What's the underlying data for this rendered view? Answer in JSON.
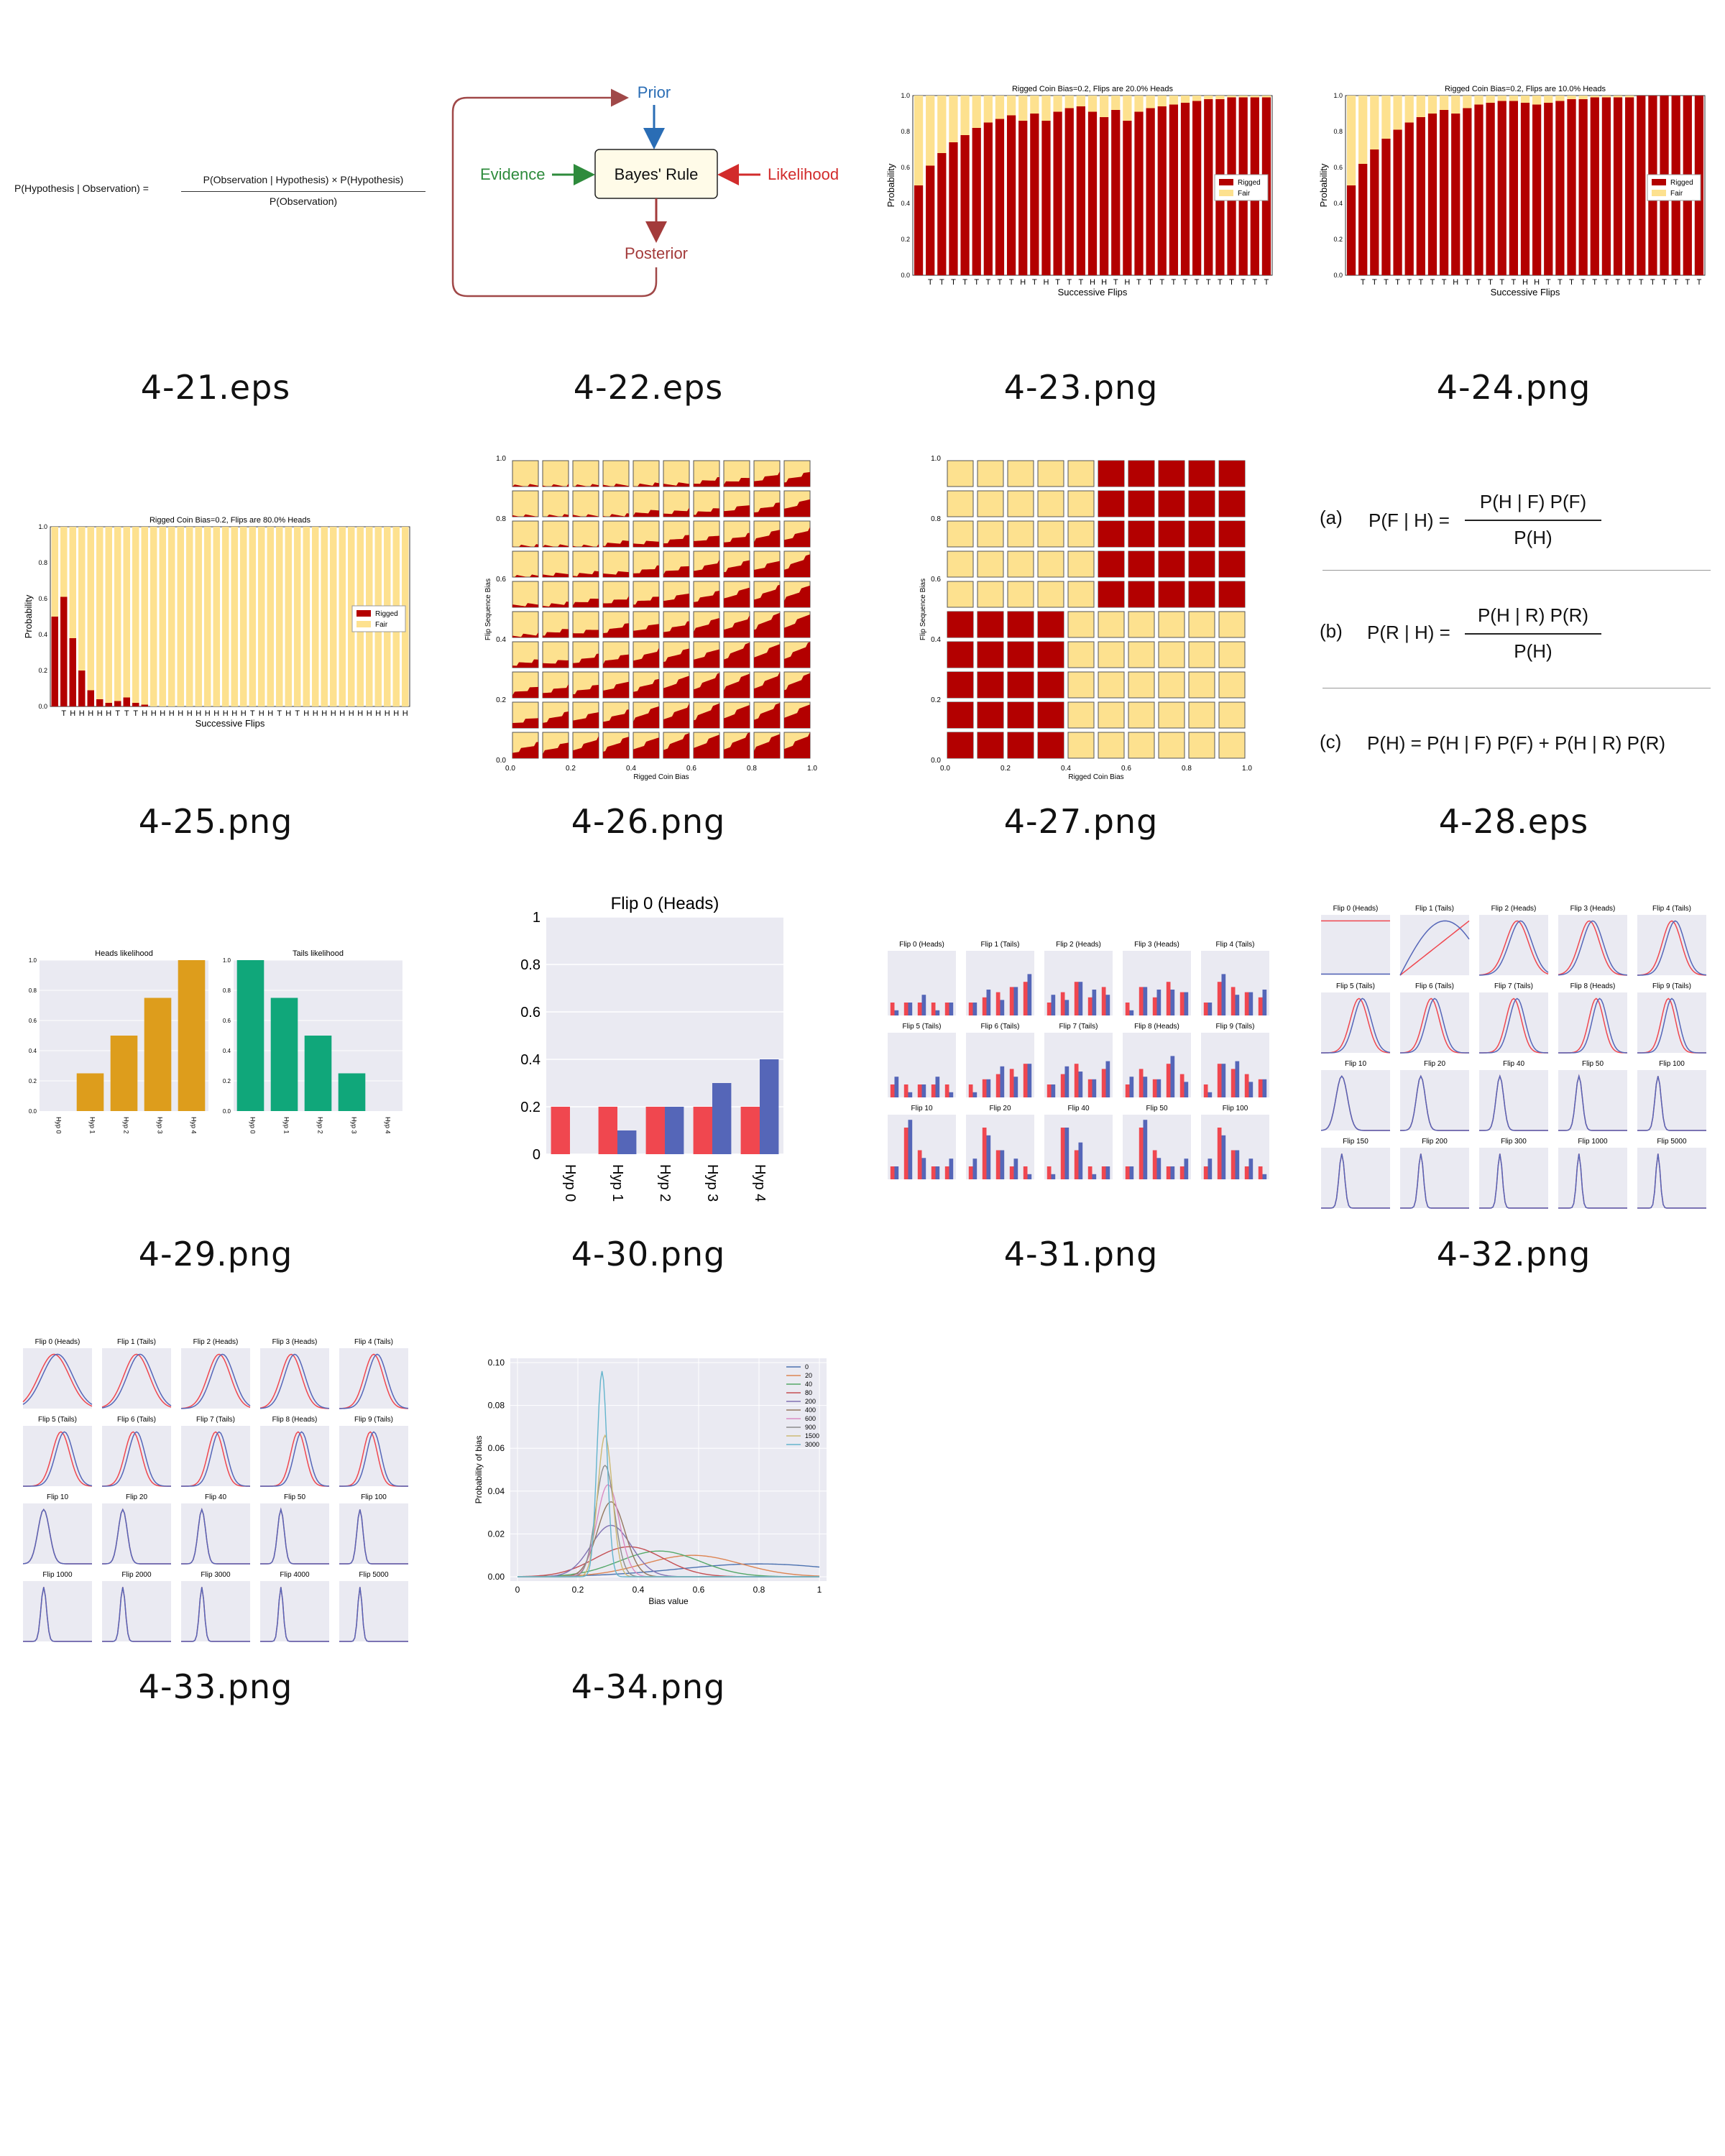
{
  "captions": [
    "4-21.eps",
    "4-22.eps",
    "4-23.png",
    "4-24.png",
    "4-25.png",
    "4-26.png",
    "4-27.png",
    "4-28.eps",
    "4-29.png",
    "4-30.png",
    "4-31.png",
    "4-32.png",
    "4-33.png",
    "4-34.png"
  ],
  "fig21": {
    "lhs": "P(Hypothesis | Observation) =",
    "numerator": "P(Observation | Hypothesis) × P(Hypothesis)",
    "denominator": "P(Observation)"
  },
  "fig22": {
    "prior": "Prior",
    "evidence": "Evidence",
    "center": "Bayes' Rule",
    "likelihood": "Likelihood",
    "posterior": "Posterior",
    "colors": {
      "prior": "#2a6db5",
      "evidence": "#2e8b3c",
      "likelihood": "#d22b2b",
      "posterior": "#a33b3b",
      "loop": "#a04848"
    }
  },
  "fig23": {
    "chart_data": {
      "type": "bar",
      "title": "Rigged Coin Bias=0.2, Flips are 20.0% Heads",
      "xlabel": "Successive Flips",
      "ylabel": "Probability",
      "ylim": [
        0,
        1.0
      ],
      "yticks": [
        "0.0",
        "0.2",
        "0.4",
        "0.6",
        "0.8",
        "1.0"
      ],
      "categories": [
        "",
        "T",
        "T",
        "T",
        "T",
        "T",
        "T",
        "T",
        "T",
        "H",
        "T",
        "H",
        "T",
        "T",
        "T",
        "H",
        "H",
        "T",
        "H",
        "T",
        "T",
        "T",
        "T",
        "T",
        "T",
        "T",
        "T",
        "T",
        "T",
        "T",
        "T"
      ],
      "series": [
        {
          "name": "Rigged",
          "values": [
            0.5,
            0.61,
            0.68,
            0.74,
            0.78,
            0.82,
            0.85,
            0.87,
            0.89,
            0.86,
            0.9,
            0.86,
            0.91,
            0.93,
            0.94,
            0.91,
            0.88,
            0.92,
            0.86,
            0.91,
            0.93,
            0.94,
            0.95,
            0.96,
            0.97,
            0.98,
            0.98,
            0.99,
            0.99,
            0.99,
            0.99
          ]
        },
        {
          "name": "Fair",
          "values": [
            0.5,
            0.39,
            0.32,
            0.26,
            0.22,
            0.18,
            0.15,
            0.13,
            0.11,
            0.14,
            0.1,
            0.14,
            0.09,
            0.07,
            0.06,
            0.09,
            0.12,
            0.08,
            0.14,
            0.09,
            0.07,
            0.06,
            0.05,
            0.04,
            0.03,
            0.02,
            0.02,
            0.01,
            0.01,
            0.01,
            0.01
          ]
        }
      ],
      "legend": "right"
    }
  },
  "fig24": {
    "chart_data": {
      "type": "bar",
      "title": "Rigged Coin Bias=0.2, Flips are 10.0% Heads",
      "xlabel": "Successive Flips",
      "ylabel": "Probability",
      "ylim": [
        0,
        1.0
      ],
      "yticks": [
        "0.0",
        "0.2",
        "0.4",
        "0.6",
        "0.8",
        "1.0"
      ],
      "categories": [
        "",
        "T",
        "T",
        "T",
        "T",
        "T",
        "T",
        "T",
        "T",
        "H",
        "T",
        "T",
        "T",
        "T",
        "T",
        "H",
        "H",
        "T",
        "T",
        "T",
        "T",
        "T",
        "T",
        "T",
        "T",
        "T",
        "T",
        "T",
        "T",
        "T",
        "T"
      ],
      "series": [
        {
          "name": "Rigged",
          "values": [
            0.5,
            0.62,
            0.7,
            0.76,
            0.81,
            0.85,
            0.88,
            0.9,
            0.92,
            0.9,
            0.93,
            0.95,
            0.96,
            0.97,
            0.97,
            0.96,
            0.95,
            0.96,
            0.97,
            0.98,
            0.98,
            0.99,
            0.99,
            0.99,
            0.99,
            1.0,
            1.0,
            1.0,
            1.0,
            1.0,
            1.0
          ]
        },
        {
          "name": "Fair",
          "values": [
            0.5,
            0.38,
            0.3,
            0.24,
            0.19,
            0.15,
            0.12,
            0.1,
            0.08,
            0.1,
            0.07,
            0.05,
            0.04,
            0.03,
            0.03,
            0.04,
            0.05,
            0.04,
            0.03,
            0.02,
            0.02,
            0.01,
            0.01,
            0.01,
            0.01,
            0.0,
            0.0,
            0.0,
            0.0,
            0.0,
            0.0
          ]
        }
      ],
      "legend": "right"
    }
  },
  "fig25": {
    "chart_data": {
      "type": "bar",
      "title": "Rigged Coin Bias=0.2, Flips are 80.0% Heads",
      "xlabel": "Successive Flips",
      "ylabel": "Probability",
      "ylim": [
        0,
        1.0
      ],
      "yticks": [
        "0.0",
        "0.2",
        "0.4",
        "0.6",
        "0.8",
        "1.0"
      ],
      "categories": [
        "",
        "T",
        "H",
        "H",
        "H",
        "H",
        "H",
        "T",
        "T",
        "T",
        "H",
        "H",
        "H",
        "H",
        "H",
        "H",
        "H",
        "H",
        "H",
        "H",
        "H",
        "H",
        "T",
        "H",
        "H",
        "T",
        "H",
        "T",
        "H",
        "H",
        "H",
        "H",
        "H",
        "H",
        "H",
        "H",
        "H",
        "H",
        "H",
        "H"
      ],
      "series": [
        {
          "name": "Rigged",
          "values": [
            0.5,
            0.61,
            0.38,
            0.2,
            0.09,
            0.04,
            0.02,
            0.03,
            0.05,
            0.02,
            0.01,
            0,
            0,
            0,
            0,
            0,
            0,
            0,
            0,
            0,
            0,
            0,
            0,
            0,
            0,
            0,
            0,
            0,
            0,
            0,
            0,
            0,
            0,
            0,
            0,
            0,
            0,
            0,
            0,
            0
          ]
        },
        {
          "name": "Fair",
          "values": [
            0.5,
            0.39,
            0.62,
            0.8,
            0.91,
            0.96,
            0.98,
            0.97,
            0.95,
            0.98,
            0.99,
            1,
            1,
            1,
            1,
            1,
            1,
            1,
            1,
            1,
            1,
            1,
            1,
            1,
            1,
            1,
            1,
            1,
            1,
            1,
            1,
            1,
            1,
            1,
            1,
            1,
            1,
            1,
            1,
            1
          ]
        }
      ],
      "legend": "right"
    }
  },
  "fig26": {
    "chart_data": {
      "type": "heatmap",
      "xlabel": "Rigged Coin Bias",
      "ylabel": "Flip Sequence Bias",
      "xticks": [
        "0.0",
        "0.2",
        "0.4",
        "0.6",
        "0.8",
        "1.0"
      ],
      "yticks": [
        "0.0",
        "0.2",
        "0.4",
        "0.6",
        "0.8",
        "1.0"
      ],
      "grid": [
        10,
        10
      ]
    }
  },
  "fig27": {
    "chart_data": {
      "type": "heatmap",
      "xlabel": "Rigged Coin Bias",
      "ylabel": "Flip Sequence Bias",
      "xticks": [
        "0.0",
        "0.2",
        "0.4",
        "0.6",
        "0.8",
        "1.0"
      ],
      "yticks": [
        "0.0",
        "0.2",
        "0.4",
        "0.6",
        "0.8",
        "1.0"
      ],
      "grid": [
        10,
        10
      ]
    }
  },
  "fig28": {
    "a_label": "(a)",
    "a_lhs": "P(F | H) =",
    "a_num": "P(H | F)  P(F)",
    "a_den": "P(H)",
    "b_label": "(b)",
    "b_lhs": "P(R | H) =",
    "b_num": "P(H | R)  P(R)",
    "b_den": "P(H)",
    "c_label": "(c)",
    "c_eq": "P(H) = P(H | F)  P(F) + P(H | R)  P(R)"
  },
  "fig29": {
    "chart_data": [
      {
        "type": "bar",
        "title": "Heads likelihood",
        "categories": [
          "Hyp 0",
          "Hyp 1",
          "Hyp 2",
          "Hyp 3",
          "Hyp 4"
        ],
        "values": [
          0,
          0.25,
          0.5,
          0.75,
          1.0
        ],
        "ylim": [
          0,
          1.0
        ],
        "color": "#dd9d1c"
      },
      {
        "type": "bar",
        "title": "Tails likelihood",
        "categories": [
          "Hyp 0",
          "Hyp 1",
          "Hyp 2",
          "Hyp 3",
          "Hyp 4"
        ],
        "values": [
          1.0,
          0.75,
          0.5,
          0.25,
          0
        ],
        "ylim": [
          0,
          1.0
        ],
        "color": "#10a77a"
      }
    ],
    "yticks": [
      "0.0",
      "0.2",
      "0.4",
      "0.6",
      "0.8",
      "1.0"
    ]
  },
  "fig30": {
    "chart_data": {
      "type": "bar",
      "title": "Flip 0 (Heads)",
      "categories": [
        "Hyp 0",
        "Hyp 1",
        "Hyp 2",
        "Hyp 3",
        "Hyp 4"
      ],
      "series": [
        {
          "values": [
            0.2,
            0.2,
            0.2,
            0.2,
            0.2
          ],
          "color": "#f0474f"
        },
        {
          "values": [
            0,
            0.1,
            0.2,
            0.3,
            0.4
          ],
          "color": "#5566b8"
        }
      ],
      "ylim": [
        0,
        1.0
      ],
      "yticks": [
        "0",
        "0.2",
        "0.4",
        "0.6",
        "0.8",
        "1"
      ]
    }
  },
  "fig31": {
    "titles": [
      "Flip 0 (Heads)",
      "Flip 1 (Tails)",
      "Flip 2 (Heads)",
      "Flip 3 (Heads)",
      "Flip 4 (Tails)",
      "Flip 5 (Tails)",
      "Flip 6 (Tails)",
      "Flip 7 (Tails)",
      "Flip 8 (Heads)",
      "Flip 9 (Tails)",
      "Flip 10",
      "Flip 20",
      "Flip 40",
      "Flip 50",
      "Flip 100"
    ]
  },
  "fig32": {
    "titles": [
      "Flip 0 (Heads)",
      "Flip 1 (Tails)",
      "Flip 2 (Heads)",
      "Flip 3 (Heads)",
      "Flip 4 (Tails)",
      "Flip 5 (Tails)",
      "Flip 6 (Tails)",
      "Flip 7 (Tails)",
      "Flip 8 (Heads)",
      "Flip 9 (Tails)",
      "Flip 10",
      "Flip 20",
      "Flip 40",
      "Flip 50",
      "Flip 100",
      "Flip 150",
      "Flip 200",
      "Flip 300",
      "Flip 1000",
      "Flip 5000"
    ]
  },
  "fig33": {
    "titles": [
      "Flip 0 (Heads)",
      "Flip 1 (Tails)",
      "Flip 2 (Heads)",
      "Flip 3 (Heads)",
      "Flip 4 (Tails)",
      "Flip 5 (Tails)",
      "Flip 6 (Tails)",
      "Flip 7 (Tails)",
      "Flip 8 (Heads)",
      "Flip 9 (Tails)",
      "Flip 10",
      "Flip 20",
      "Flip 40",
      "Flip 50",
      "Flip 100",
      "Flip 1000",
      "Flip 2000",
      "Flip 3000",
      "Flip 4000",
      "Flip 5000"
    ]
  },
  "fig34": {
    "chart_data": {
      "type": "line",
      "xlabel": "Bias value",
      "ylabel": "Probability of bias",
      "xticks": [
        "0",
        "0.2",
        "0.4",
        "0.6",
        "0.8",
        "1"
      ],
      "yticks": [
        "0.00",
        "0.02",
        "0.04",
        "0.06",
        "0.08",
        "0.10"
      ],
      "ylim": [
        0,
        0.1
      ],
      "legend": "top-right",
      "series": [
        {
          "name": "0",
          "peak_x": 0.8,
          "peak_y": 0.006,
          "color": "#4c72b0"
        },
        {
          "name": "20",
          "peak_x": 0.58,
          "peak_y": 0.01,
          "color": "#dd8452"
        },
        {
          "name": "40",
          "peak_x": 0.47,
          "peak_y": 0.012,
          "color": "#55a868"
        },
        {
          "name": "80",
          "peak_x": 0.37,
          "peak_y": 0.014,
          "color": "#c44e52"
        },
        {
          "name": "200",
          "peak_x": 0.31,
          "peak_y": 0.024,
          "color": "#8172b3"
        },
        {
          "name": "400",
          "peak_x": 0.31,
          "peak_y": 0.035,
          "color": "#937860"
        },
        {
          "name": "600",
          "peak_x": 0.3,
          "peak_y": 0.043,
          "color": "#da8bc3"
        },
        {
          "name": "900",
          "peak_x": 0.29,
          "peak_y": 0.052,
          "color": "#8c8c8c"
        },
        {
          "name": "1500",
          "peak_x": 0.29,
          "peak_y": 0.066,
          "color": "#ccb974"
        },
        {
          "name": "3000",
          "peak_x": 0.28,
          "peak_y": 0.096,
          "color": "#64b5cd"
        }
      ]
    }
  }
}
